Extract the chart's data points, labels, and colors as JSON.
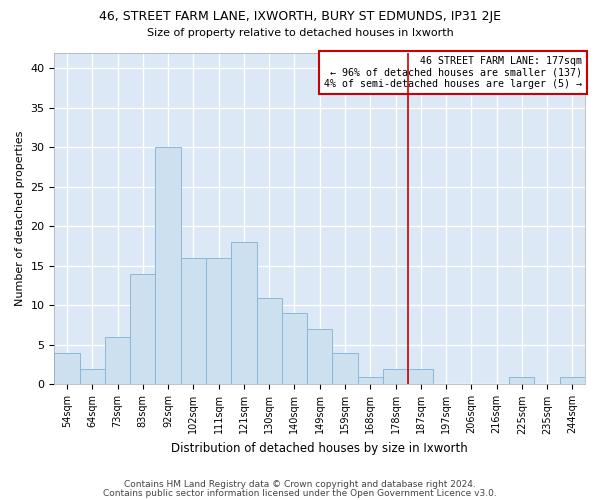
{
  "title_line1": "46, STREET FARM LANE, IXWORTH, BURY ST EDMUNDS, IP31 2JE",
  "title_line2": "Size of property relative to detached houses in Ixworth",
  "xlabel": "Distribution of detached houses by size in Ixworth",
  "ylabel": "Number of detached properties",
  "bar_labels": [
    "54sqm",
    "64sqm",
    "73sqm",
    "83sqm",
    "92sqm",
    "102sqm",
    "111sqm",
    "121sqm",
    "130sqm",
    "140sqm",
    "149sqm",
    "159sqm",
    "168sqm",
    "178sqm",
    "187sqm",
    "197sqm",
    "206sqm",
    "216sqm",
    "225sqm",
    "235sqm",
    "244sqm"
  ],
  "bar_values": [
    4,
    2,
    6,
    14,
    30,
    16,
    16,
    18,
    11,
    9,
    7,
    4,
    1,
    2,
    2,
    0,
    0,
    0,
    1,
    0,
    1
  ],
  "bar_color": "#cce0f0",
  "bar_edge_color": "#8ab8d8",
  "reference_line_x": 13.5,
  "annotation_text": "46 STREET FARM LANE: 177sqm\n← 96% of detached houses are smaller (137)\n4% of semi-detached houses are larger (5) →",
  "annotation_box_facecolor": "#ffffff",
  "annotation_box_edgecolor": "#cc0000",
  "ylim": [
    0,
    42
  ],
  "yticks": [
    0,
    5,
    10,
    15,
    20,
    25,
    30,
    35,
    40
  ],
  "background_color": "#dce8f5",
  "grid_color": "#ffffff",
  "fig_facecolor": "#ffffff",
  "footer_line1": "Contains HM Land Registry data © Crown copyright and database right 2024.",
  "footer_line2": "Contains public sector information licensed under the Open Government Licence v3.0."
}
